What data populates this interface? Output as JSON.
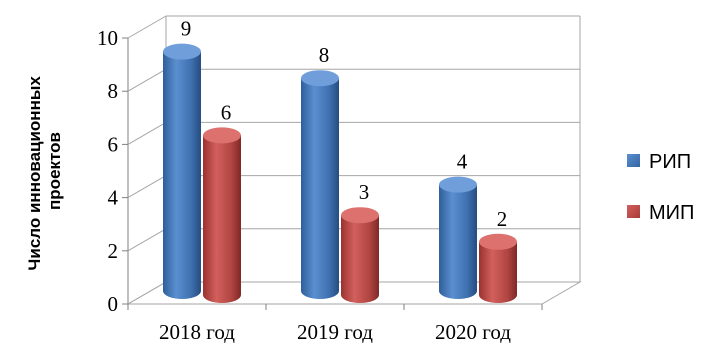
{
  "chart_data": {
    "type": "bar",
    "categories": [
      "2018 год",
      "2019 год",
      "2020 год"
    ],
    "series": [
      {
        "name": "РИП",
        "values": [
          9,
          8,
          4
        ],
        "color": "#4f81bd"
      },
      {
        "name": "МИП",
        "values": [
          6,
          3,
          2
        ],
        "color": "#c0504d"
      }
    ],
    "title": "",
    "xlabel": "",
    "ylabel": [
      "Число инновационных",
      "проектов"
    ],
    "ylim": [
      0,
      10
    ],
    "yticks": [
      "0",
      "2",
      "4",
      "6",
      "8",
      "10"
    ],
    "grid": true,
    "legend_position": "right",
    "style": "3d-cylinder"
  }
}
